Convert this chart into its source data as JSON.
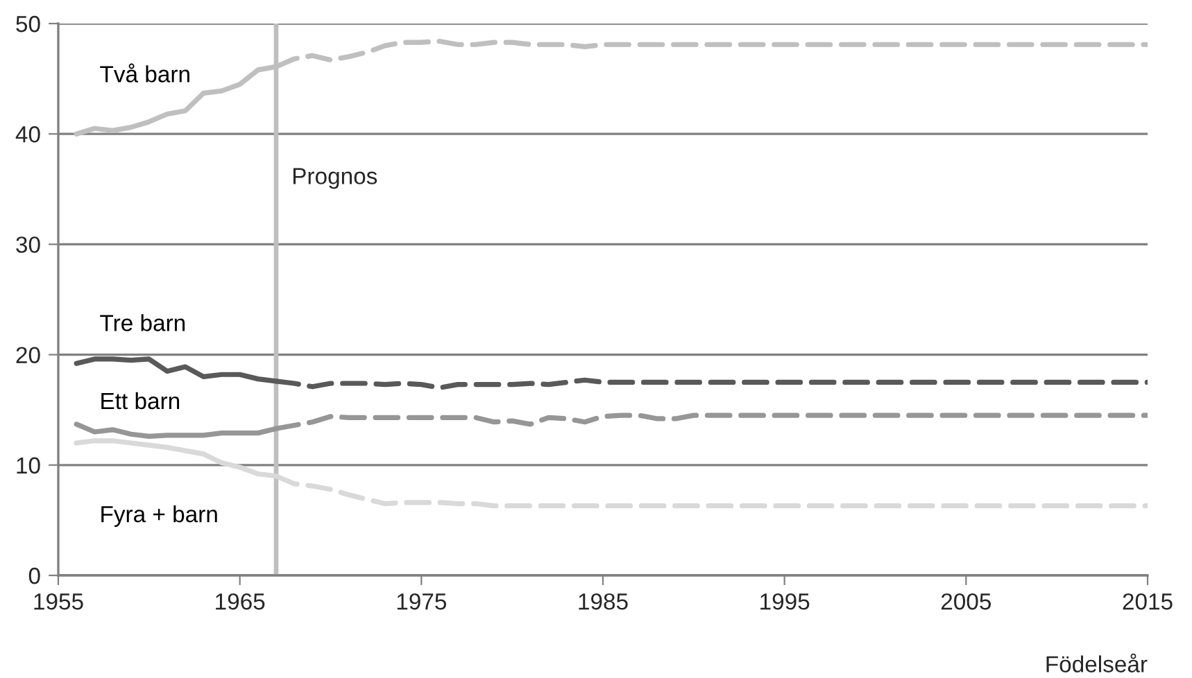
{
  "chart_data": {
    "type": "line",
    "xlabel": "Födelseår",
    "xlim": [
      1955,
      2015
    ],
    "xticks": [
      1955,
      1965,
      1975,
      1985,
      1995,
      2005,
      2015
    ],
    "ylim": [
      0,
      50
    ],
    "yticks": [
      0,
      10,
      20,
      30,
      40,
      50
    ],
    "grid": "y",
    "legend": false,
    "marker": "none",
    "ref_lines": [
      {
        "axis": "x",
        "value": 1967,
        "label": "Prognos",
        "color": "#bfbfbf",
        "line_style": "solid"
      }
    ],
    "series": [
      {
        "name": "Två barn",
        "color": "#bfbfbf",
        "line_style": "solid",
        "x": [
          1956,
          1957,
          1958,
          1959,
          1960,
          1961,
          1962,
          1963,
          1964,
          1965,
          1966,
          1967
        ],
        "values": [
          40.0,
          40.5,
          40.3,
          40.6,
          41.1,
          41.8,
          42.1,
          43.7,
          43.9,
          44.5,
          45.8,
          46.1
        ]
      },
      {
        "color": "#bfbfbf",
        "line_style": "dashed",
        "x": [
          1967,
          1968,
          1969,
          1970,
          1971,
          1972,
          1973,
          1974,
          1975,
          1976,
          1977,
          1978,
          1979,
          1980,
          1981,
          1982,
          1983,
          1984,
          1985,
          2015
        ],
        "values": [
          46.1,
          46.8,
          47.1,
          46.7,
          47.0,
          47.4,
          48.0,
          48.3,
          48.3,
          48.4,
          48.1,
          48.1,
          48.3,
          48.3,
          48.1,
          48.1,
          48.1,
          47.9,
          48.1,
          48.1
        ]
      },
      {
        "name": "Tre barn",
        "color": "#595959",
        "line_style": "solid",
        "x": [
          1956,
          1957,
          1958,
          1959,
          1960,
          1961,
          1962,
          1963,
          1964,
          1965,
          1966,
          1967
        ],
        "values": [
          19.2,
          19.6,
          19.6,
          19.5,
          19.6,
          18.5,
          18.9,
          18.0,
          18.2,
          18.2,
          17.8,
          17.6
        ]
      },
      {
        "color": "#595959",
        "line_style": "dashed",
        "x": [
          1967,
          1968,
          1969,
          1970,
          1971,
          1972,
          1973,
          1974,
          1975,
          1976,
          1977,
          1978,
          1979,
          1980,
          1981,
          1982,
          1983,
          1984,
          1985,
          2015
        ],
        "values": [
          17.6,
          17.4,
          17.1,
          17.4,
          17.4,
          17.4,
          17.3,
          17.4,
          17.3,
          17.0,
          17.3,
          17.3,
          17.3,
          17.3,
          17.4,
          17.3,
          17.5,
          17.7,
          17.5,
          17.5
        ]
      },
      {
        "name": "Ett barn",
        "color": "#969696",
        "line_style": "solid",
        "x": [
          1956,
          1957,
          1958,
          1959,
          1960,
          1961,
          1962,
          1963,
          1964,
          1965,
          1966,
          1967
        ],
        "values": [
          13.7,
          13.0,
          13.2,
          12.8,
          12.6,
          12.7,
          12.7,
          12.7,
          12.9,
          12.9,
          12.9,
          13.3
        ]
      },
      {
        "color": "#969696",
        "line_style": "dashed",
        "x": [
          1967,
          1968,
          1969,
          1970,
          1971,
          1972,
          1973,
          1974,
          1975,
          1976,
          1977,
          1978,
          1979,
          1980,
          1981,
          1982,
          1983,
          1984,
          1985,
          1986,
          1987,
          1988,
          1989,
          1990,
          2015
        ],
        "values": [
          13.3,
          13.6,
          13.9,
          14.4,
          14.3,
          14.3,
          14.3,
          14.3,
          14.3,
          14.3,
          14.3,
          14.3,
          13.9,
          14.0,
          13.7,
          14.3,
          14.2,
          13.9,
          14.4,
          14.5,
          14.5,
          14.2,
          14.2,
          14.5,
          14.5
        ]
      },
      {
        "name": "Fyra + barn",
        "color": "#d9d9d9",
        "line_style": "solid",
        "x": [
          1956,
          1957,
          1958,
          1959,
          1960,
          1961,
          1962,
          1963,
          1964,
          1965,
          1966,
          1967
        ],
        "values": [
          12.0,
          12.2,
          12.2,
          12.0,
          11.8,
          11.6,
          11.3,
          11.0,
          10.2,
          9.8,
          9.2,
          9.0
        ]
      },
      {
        "color": "#d9d9d9",
        "line_style": "dashed",
        "x": [
          1967,
          1968,
          1969,
          1970,
          1971,
          1972,
          1973,
          1974,
          1975,
          1976,
          1977,
          1978,
          1979,
          1980,
          2015
        ],
        "values": [
          9.0,
          8.3,
          8.1,
          7.8,
          7.3,
          6.9,
          6.5,
          6.6,
          6.6,
          6.6,
          6.5,
          6.5,
          6.3,
          6.3,
          6.3
        ]
      }
    ]
  }
}
